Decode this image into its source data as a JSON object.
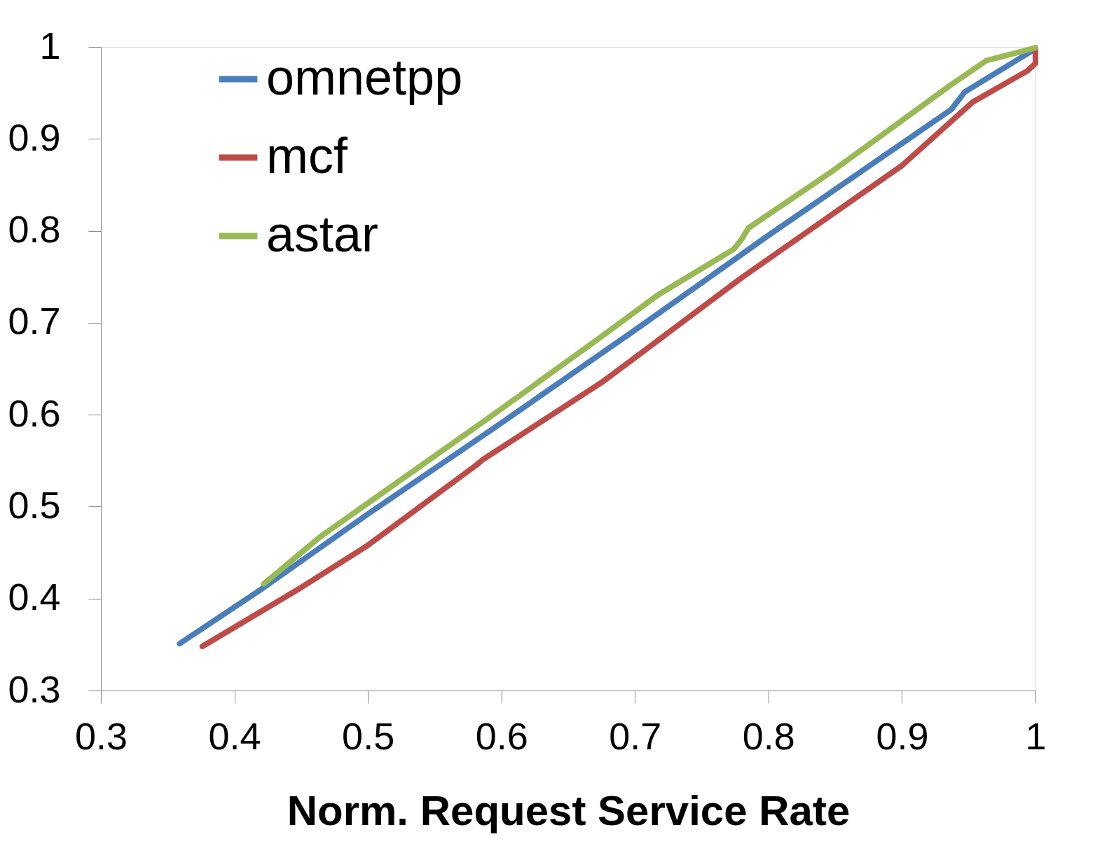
{
  "chart_data": {
    "type": "line",
    "xlabel": "Norm. Request Service Rate",
    "xlim": [
      0.3,
      1
    ],
    "ylim": [
      0.3,
      1
    ],
    "xticks": [
      0.3,
      0.4,
      0.5,
      0.6,
      0.7,
      0.8,
      0.9,
      1
    ],
    "yticks": [
      0.3,
      0.4,
      0.5,
      0.6,
      0.7,
      0.8,
      0.9,
      1
    ],
    "grid": false,
    "legend": "top left",
    "marker": "none",
    "line_style": "solid",
    "series": [
      {
        "name": "omnetpp",
        "color": "#4a7ebb",
        "x": [
          0.359,
          0.42,
          0.5,
          0.591,
          0.7,
          0.8,
          0.9,
          0.937,
          0.947,
          1.0
        ],
        "values": [
          0.351,
          0.41,
          0.492,
          0.582,
          0.692,
          0.795,
          0.895,
          0.932,
          0.951,
          0.998
        ]
      },
      {
        "name": "mcf",
        "color": "#be4b48",
        "x": [
          0.376,
          0.45,
          0.5,
          0.581,
          0.586,
          0.675,
          0.7,
          0.78,
          0.9,
          0.953,
          0.994,
          1.0,
          1.0
        ],
        "values": [
          0.348,
          0.412,
          0.458,
          0.545,
          0.551,
          0.635,
          0.662,
          0.749,
          0.871,
          0.94,
          0.974,
          0.982,
          0.999
        ]
      },
      {
        "name": "astar",
        "color": "#98b954",
        "x": [
          0.422,
          0.465,
          0.591,
          0.675,
          0.717,
          0.774,
          0.78,
          0.785,
          0.847,
          0.937,
          0.963,
          1.0
        ],
        "values": [
          0.416,
          0.468,
          0.597,
          0.685,
          0.73,
          0.78,
          0.791,
          0.803,
          0.864,
          0.959,
          0.985,
          0.999
        ]
      }
    ]
  }
}
